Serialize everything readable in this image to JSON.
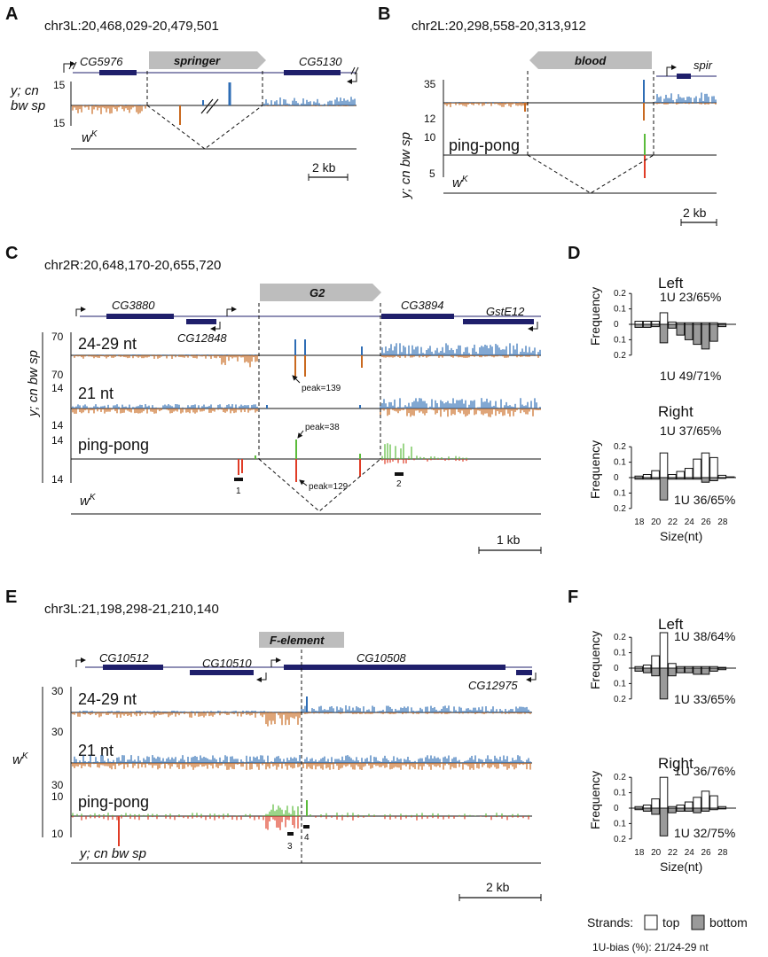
{
  "panels": {
    "A": {
      "letter": "A",
      "coord": "chr3L:20,468,029-20,479,501",
      "element": "springer",
      "genes": [
        "CG5976",
        "CG5130"
      ],
      "strain": [
        "y; cn",
        "bw sp"
      ],
      "ticks": [
        "15",
        "15"
      ],
      "wk": "w",
      "wk_sup": "K",
      "scale": "2 kb"
    },
    "B": {
      "letter": "B",
      "coord": "chr2L:20,298,558-20,313,912",
      "element": "blood",
      "genes": [
        "spir"
      ],
      "strain": "y; cn bw sp",
      "ticks": [
        "35",
        "12",
        "10",
        "5"
      ],
      "pingpong": "ping-pong",
      "wk": "w",
      "wk_sup": "K",
      "scale": "2 kb"
    },
    "C": {
      "letter": "C",
      "coord": "chr2R:20,648,170-20,655,720",
      "element": "G2",
      "genes": [
        "CG3880",
        "CG12848",
        "CG3894",
        "GstE12"
      ],
      "strain": "y; cn bw sp",
      "tracks": [
        "24-29 nt",
        "21 nt",
        "ping-pong"
      ],
      "ticks": [
        "70",
        "70",
        "14",
        "14",
        "14",
        "14"
      ],
      "peaks": [
        "peak=139",
        "peak=38",
        "peak=129"
      ],
      "markers": [
        "1",
        "2"
      ],
      "wk": "w",
      "wk_sup": "K",
      "scale": "1 kb"
    },
    "E": {
      "letter": "E",
      "coord": "chr3L:21,198,298-21,210,140",
      "element": "F-element",
      "genes": [
        "CG10512",
        "CG10510",
        "CG10508",
        "CG12975"
      ],
      "strain_wk": "w",
      "strain_wk_sup": "K",
      "tracks": [
        "24-29 nt",
        "21 nt",
        "ping-pong"
      ],
      "ticks": [
        "30",
        "30",
        "30",
        "10",
        "10"
      ],
      "markers": [
        "3",
        "4"
      ],
      "bottom_strain": "y; cn bw sp",
      "scale": "2 kb"
    }
  },
  "chart_data": [
    {
      "panel": "D",
      "type": "bar",
      "title": "Left",
      "xlabel": "Size(nt)",
      "ylabel": "Frequency",
      "x": [
        18,
        19,
        20,
        21,
        22,
        23,
        24,
        25,
        26,
        27,
        28,
        29
      ],
      "xticks": [
        18,
        20,
        22,
        24,
        26,
        28
      ],
      "ylim": [
        -0.2,
        0.2
      ],
      "yticks": [
        "0.2",
        "0.1",
        "0",
        "0.1",
        "0.2"
      ],
      "annotations": [
        "1U 23/65%",
        "1U 49/71%"
      ],
      "series": [
        {
          "name": "top",
          "values": [
            0.02,
            0.02,
            0.02,
            0.075,
            0.015,
            0.01,
            0.01,
            0.01,
            0.01,
            0.01,
            0.005,
            0.0
          ]
        },
        {
          "name": "bottom",
          "values": [
            0.02,
            0.02,
            0.015,
            0.12,
            0.025,
            0.07,
            0.1,
            0.13,
            0.16,
            0.11,
            0.015,
            0.0
          ]
        }
      ]
    },
    {
      "panel": "D",
      "type": "bar",
      "title": "Right",
      "xlabel": "Size(nt)",
      "ylabel": "Frequency",
      "x": [
        18,
        19,
        20,
        21,
        22,
        23,
        24,
        25,
        26,
        27,
        28,
        29
      ],
      "xticks": [
        18,
        20,
        22,
        24,
        26,
        28
      ],
      "ylim": [
        -0.2,
        0.2
      ],
      "yticks": [
        "0.2",
        "0.1",
        "0",
        "0.1",
        "0.2"
      ],
      "annotations": [
        "1U 37/65%",
        "1U 36/65%"
      ],
      "series": [
        {
          "name": "top",
          "values": [
            0.01,
            0.02,
            0.045,
            0.16,
            0.02,
            0.04,
            0.06,
            0.12,
            0.16,
            0.13,
            0.015,
            0.005
          ]
        },
        {
          "name": "bottom",
          "values": [
            0.01,
            0.01,
            0.01,
            0.145,
            0.01,
            0.01,
            0.01,
            0.01,
            0.03,
            0.02,
            0.005,
            0.0
          ]
        }
      ]
    },
    {
      "panel": "F",
      "type": "bar",
      "title": "Left",
      "xlabel": "Size(nt)",
      "ylabel": "Frequency",
      "x": [
        18,
        19,
        20,
        21,
        22,
        23,
        24,
        25,
        26,
        27,
        28,
        29
      ],
      "xticks": [
        18,
        20,
        22,
        24,
        26,
        28
      ],
      "ylim": [
        -0.2,
        0.2
      ],
      "yticks": [
        "0.2",
        "0.1",
        "0",
        "0.1",
        "0.2"
      ],
      "annotations": [
        "1U 38/64%",
        "1U 33/65%"
      ],
      "series": [
        {
          "name": "top",
          "values": [
            0.01,
            0.02,
            0.08,
            0.23,
            0.03,
            0.01,
            0.01,
            0.01,
            0.01,
            0.01,
            0.005,
            0.0
          ]
        },
        {
          "name": "bottom",
          "values": [
            0.02,
            0.03,
            0.05,
            0.2,
            0.05,
            0.03,
            0.03,
            0.04,
            0.04,
            0.02,
            0.01,
            0.0
          ]
        }
      ]
    },
    {
      "panel": "F",
      "type": "bar",
      "title": "Right",
      "xlabel": "Size(nt)",
      "ylabel": "Frequency",
      "x": [
        18,
        19,
        20,
        21,
        22,
        23,
        24,
        25,
        26,
        27,
        28,
        29
      ],
      "xticks": [
        18,
        20,
        22,
        24,
        26,
        28
      ],
      "ylim": [
        -0.2,
        0.2
      ],
      "yticks": [
        "0.2",
        "0.1",
        "0",
        "0.1",
        "0.2"
      ],
      "annotations": [
        "1U 36/76%",
        "1U 32/75%"
      ],
      "series": [
        {
          "name": "top",
          "values": [
            0.01,
            0.02,
            0.06,
            0.2,
            0.01,
            0.02,
            0.04,
            0.07,
            0.11,
            0.08,
            0.01,
            0.0
          ]
        },
        {
          "name": "bottom",
          "values": [
            0.01,
            0.02,
            0.04,
            0.18,
            0.03,
            0.02,
            0.02,
            0.03,
            0.02,
            0.01,
            0.005,
            0.0
          ]
        }
      ]
    }
  ],
  "legend": {
    "label": "Strands:",
    "top": "top",
    "bottom": "bottom",
    "note": "1U-bias (%): 21/24-29 nt"
  },
  "colors": {
    "plus": "#2e6db5",
    "minus": "#c9691f",
    "pp_top": "#5bbb3b",
    "pp_bottom": "#e03c26",
    "gene": "#1f1f6b",
    "te": "#bdbdbd",
    "bar_bottom": "#9a9a9a"
  }
}
